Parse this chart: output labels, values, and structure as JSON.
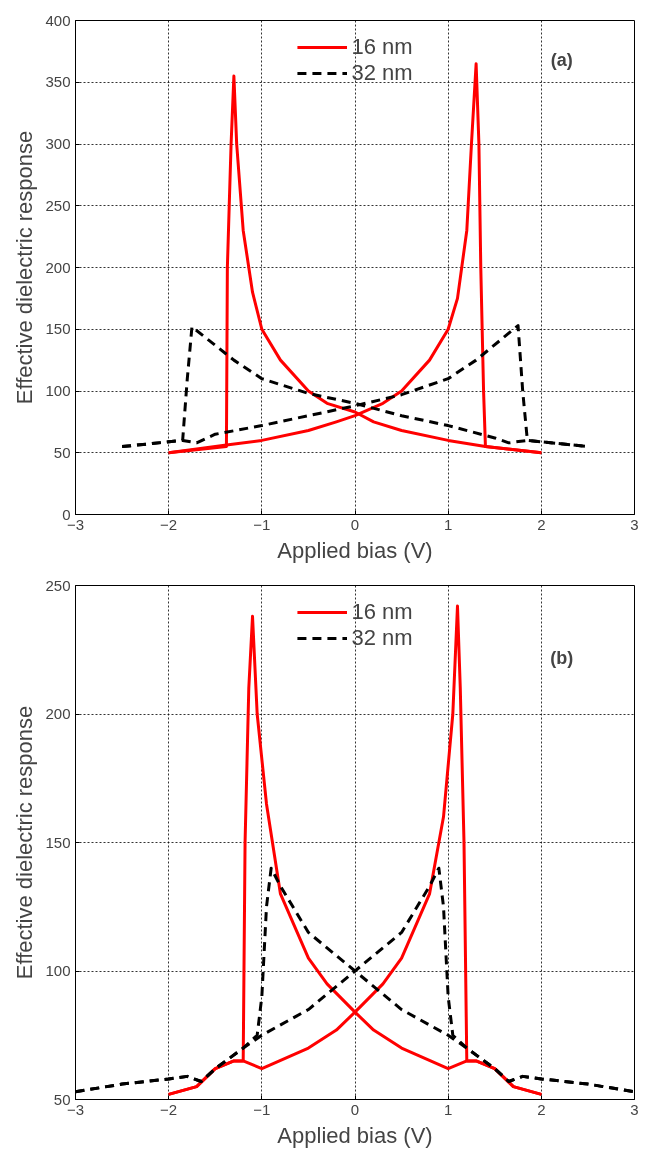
{
  "chart_data": [
    {
      "type": "line",
      "xlabel": "Applied bias (V)",
      "ylabel": "Effective dielectric response",
      "annotations": [
        "(a)"
      ],
      "xlim": [
        -3,
        3
      ],
      "ylim": [
        0,
        400
      ],
      "xticks": [
        -3,
        -2,
        -1,
        0,
        1,
        2,
        3
      ],
      "yticks": [
        0,
        50,
        100,
        150,
        200,
        250,
        300,
        350,
        400
      ],
      "grid": true,
      "legend": "top",
      "series": [
        {
          "name": "16 nm",
          "color": "#ff0000",
          "line_style": "solid",
          "x": [
            -2,
            -1.6,
            -1.4,
            -1,
            -0.5,
            -0.2,
            0,
            0.3,
            0.5,
            0.8,
            1,
            1.1,
            1.2,
            1.25,
            1.3,
            1.33,
            1.35,
            1.38,
            1.4,
            2
          ],
          "values": [
            50,
            54,
            56,
            60,
            68,
            75,
            80,
            90,
            100,
            125,
            150,
            175,
            230,
            300,
            365,
            300,
            200,
            100,
            55,
            50
          ]
        },
        {
          "color": "#ff0000",
          "line_style": "solid",
          "x": [
            -2,
            -1.38,
            -1.37,
            -1.35,
            -1.33,
            -1.3,
            -1.27,
            -1.2,
            -1.1,
            -1,
            -0.8,
            -0.5,
            -0.3,
            0,
            0.2,
            0.5,
            1,
            1.4,
            2
          ],
          "values": [
            50,
            55,
            200,
            250,
            300,
            355,
            300,
            230,
            180,
            150,
            125,
            100,
            90,
            83,
            75,
            68,
            60,
            55,
            50
          ]
        },
        {
          "name": "32 nm",
          "color": "#000000",
          "line_style": "dashed",
          "x": [
            -2.5,
            -1.85,
            -1.7,
            -1.5,
            -1,
            -0.5,
            0,
            0.5,
            1,
            1.3,
            1.75,
            1.8,
            1.85,
            2.5
          ],
          "values": [
            55,
            60,
            58,
            65,
            72,
            80,
            88,
            97,
            110,
            125,
            153,
            100,
            60,
            55
          ]
        },
        {
          "color": "#000000",
          "line_style": "dashed",
          "x": [
            -2.5,
            -1.85,
            -1.8,
            -1.75,
            -1.3,
            -1,
            -0.5,
            0,
            0.5,
            1,
            1.5,
            1.65,
            1.85,
            2.5
          ],
          "values": [
            55,
            60,
            110,
            152,
            125,
            110,
            98,
            90,
            80,
            72,
            62,
            58,
            60,
            55
          ]
        }
      ]
    },
    {
      "type": "line",
      "xlabel": "Applied bias (V)",
      "ylabel": "Effective dielectric response",
      "annotations": [
        "(b)"
      ],
      "xlim": [
        -3,
        3
      ],
      "ylim": [
        50,
        250
      ],
      "xticks": [
        -3,
        -2,
        -1,
        0,
        1,
        2,
        3
      ],
      "yticks": [
        50,
        100,
        150,
        200,
        250
      ],
      "grid": true,
      "legend": "top",
      "series": [
        {
          "name": "16 nm",
          "color": "#ff0000",
          "line_style": "solid",
          "x": [
            -2,
            -1.7,
            -1.5,
            -1.3,
            -1.2,
            -1,
            -0.5,
            -0.2,
            0,
            0.3,
            0.5,
            0.8,
            0.95,
            1.05,
            1.1,
            1.13,
            1.17,
            1.2,
            1.3,
            1.5,
            1.7,
            2
          ],
          "values": [
            52,
            55,
            62,
            65,
            65,
            62,
            70,
            77,
            84,
            95,
            105,
            130,
            160,
            200,
            242,
            210,
            150,
            65,
            65,
            62,
            55,
            52
          ]
        },
        {
          "color": "#ff0000",
          "line_style": "solid",
          "x": [
            -2,
            -1.7,
            -1.5,
            -1.3,
            -1.2,
            -1.18,
            -1.14,
            -1.1,
            -1.05,
            -0.95,
            -0.8,
            -0.5,
            -0.3,
            0,
            0.2,
            0.5,
            1,
            1.2,
            1.3,
            1.5,
            1.7,
            2
          ],
          "values": [
            52,
            55,
            62,
            65,
            65,
            150,
            210,
            238,
            200,
            165,
            130,
            105,
            95,
            84,
            77,
            70,
            62,
            65,
            65,
            62,
            55,
            52
          ]
        },
        {
          "name": "32 nm",
          "color": "#000000",
          "line_style": "dashed",
          "x": [
            -3,
            -2.5,
            -2,
            -1.8,
            -1.65,
            -1.5,
            -1.2,
            -1,
            -0.5,
            0,
            0.5,
            0.8,
            0.9,
            0.95,
            1,
            1.05,
            1.2,
            1.5,
            1.65,
            1.8,
            2,
            2.5,
            3
          ],
          "values": [
            53,
            56,
            58,
            59,
            57,
            62,
            70,
            75,
            85,
            100,
            115,
            133,
            140,
            125,
            90,
            75,
            70,
            62,
            57,
            59,
            58,
            56,
            53
          ]
        },
        {
          "color": "#000000",
          "line_style": "dashed",
          "x": [
            -3,
            -2.5,
            -2,
            -1.8,
            -1.65,
            -1.5,
            -1.2,
            -1.05,
            -1,
            -0.95,
            -0.9,
            -0.8,
            -0.5,
            0,
            0.5,
            1,
            1.2,
            1.5,
            1.65,
            1.8,
            2,
            2.5,
            3
          ],
          "values": [
            53,
            56,
            58,
            59,
            57,
            62,
            70,
            75,
            90,
            125,
            140,
            133,
            115,
            100,
            85,
            75,
            70,
            62,
            57,
            59,
            58,
            56,
            53
          ]
        }
      ]
    }
  ]
}
